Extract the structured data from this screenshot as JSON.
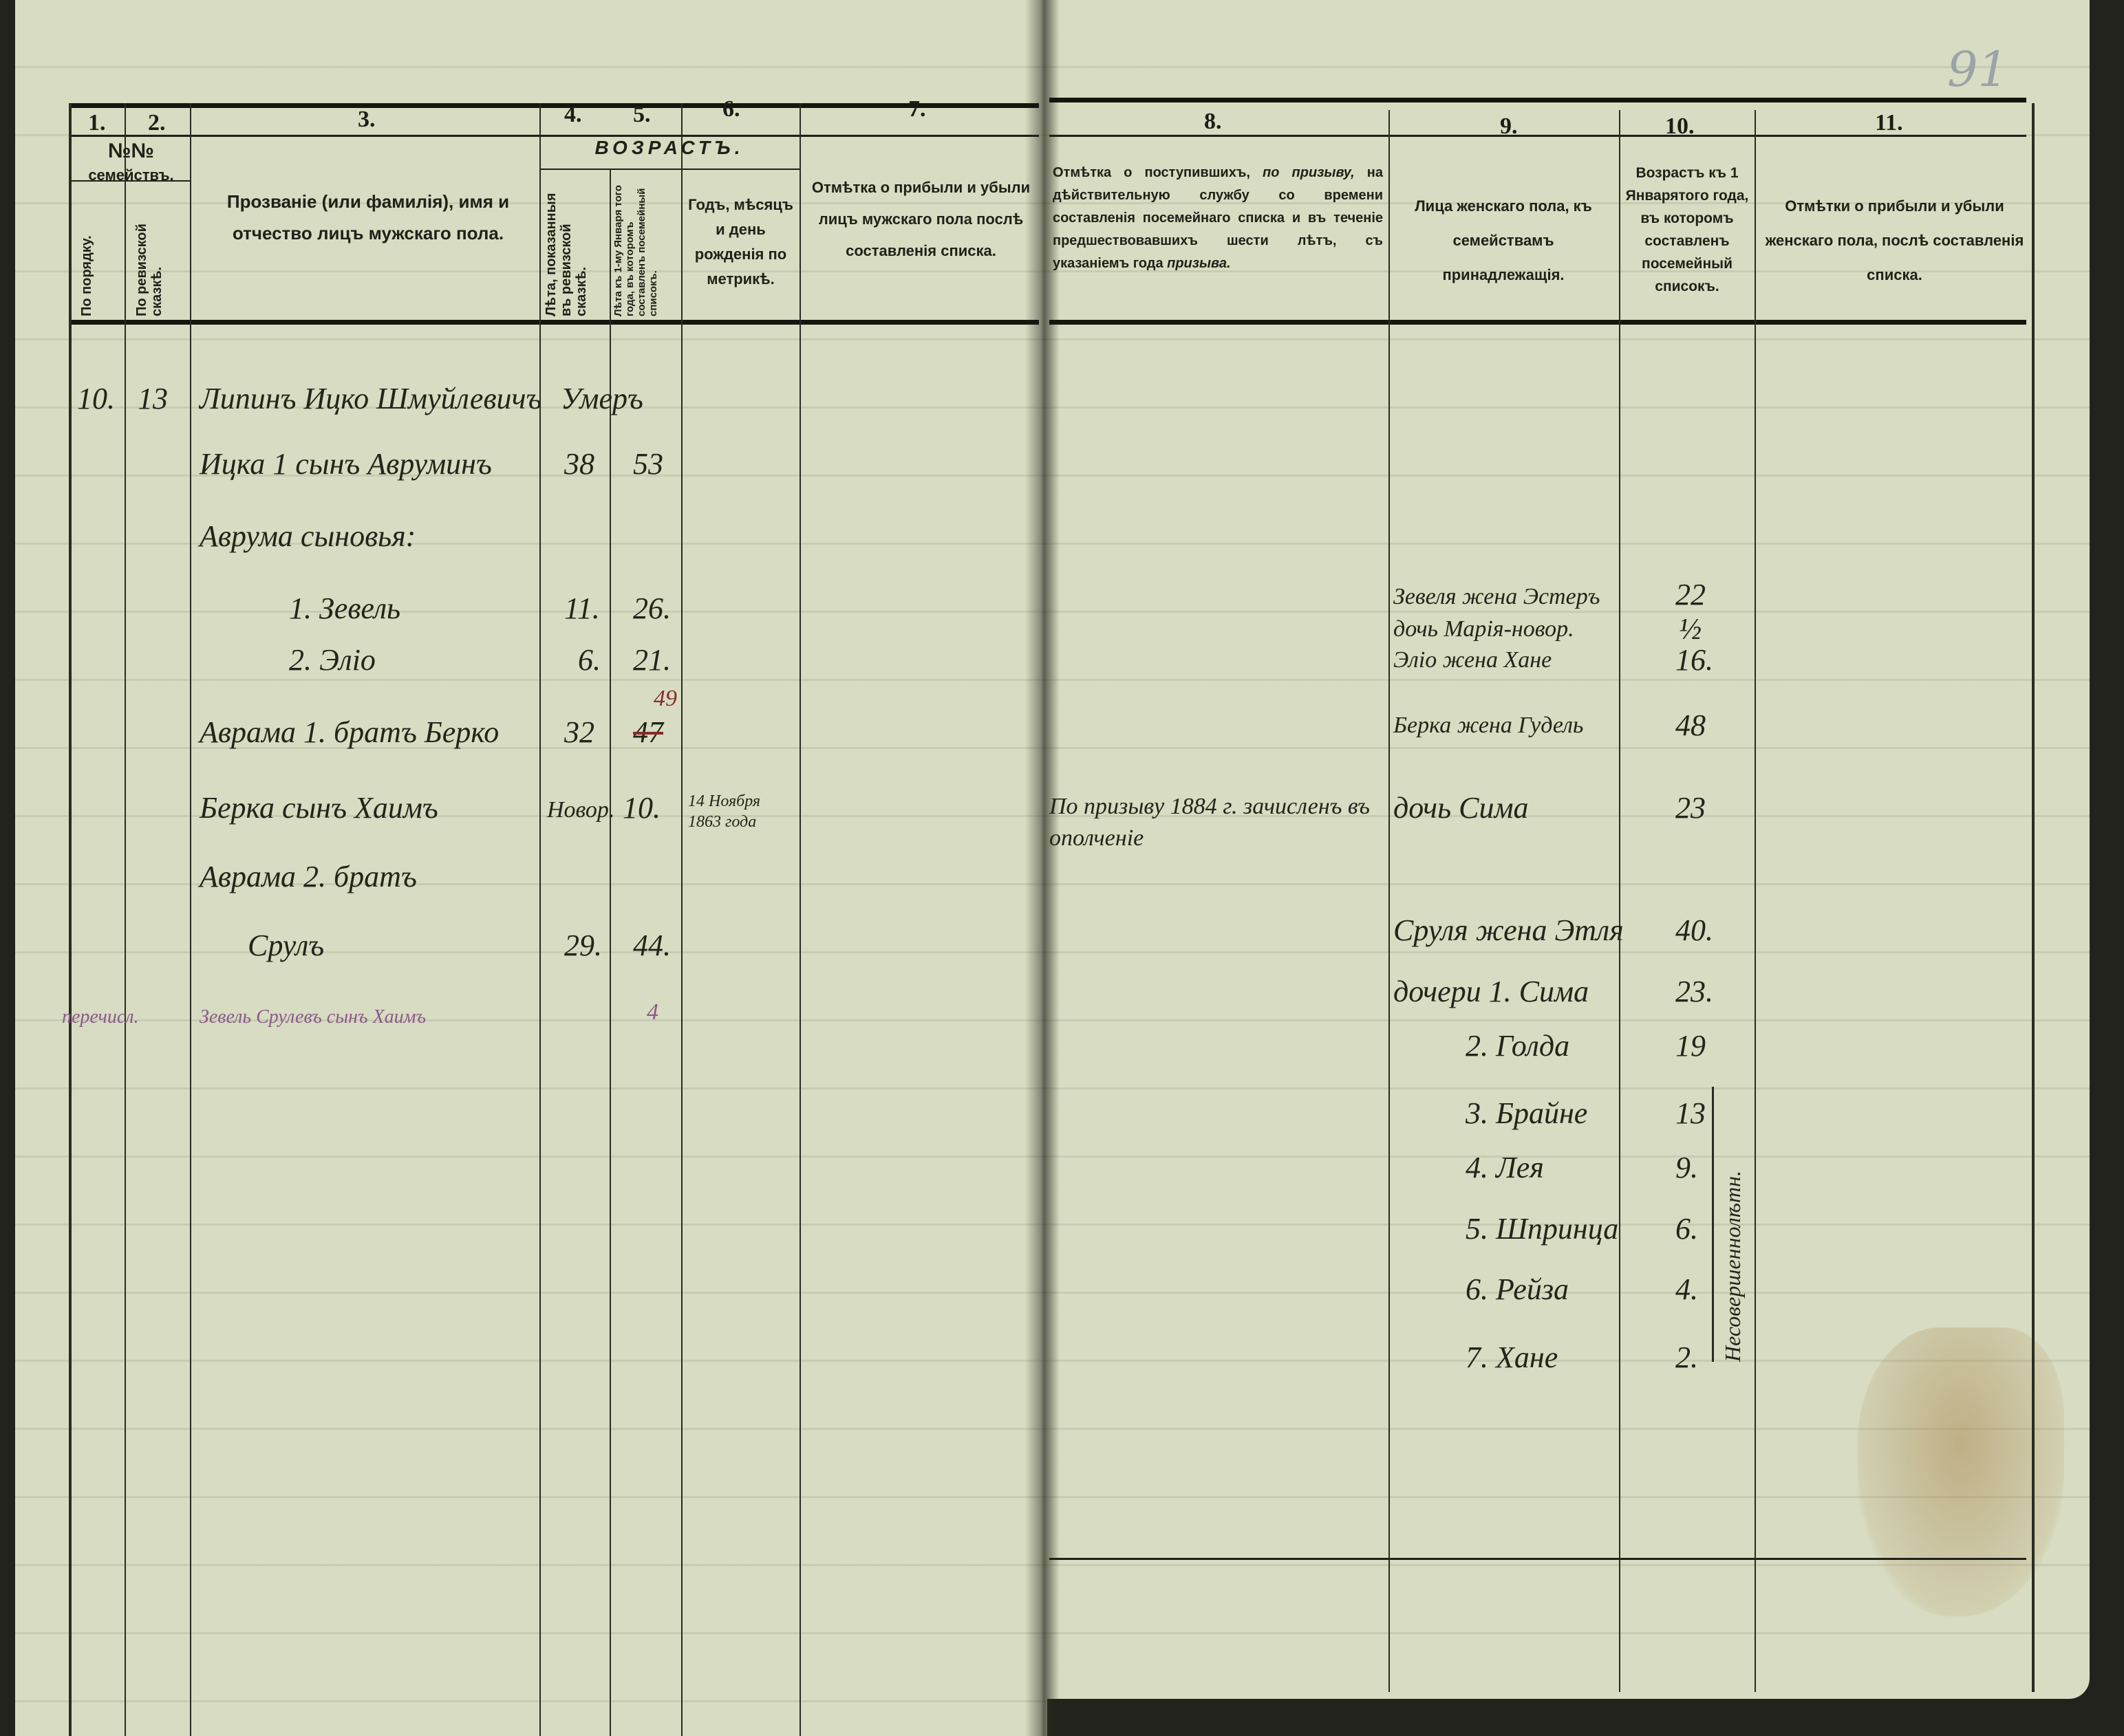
{
  "page_number": "91",
  "header": {
    "column_numbers": [
      "1.",
      "2.",
      "3.",
      "4.",
      "5.",
      "6.",
      "7.",
      "8.",
      "9.",
      "10.",
      "11."
    ],
    "families_no": "№№",
    "families_label": "семействъ.",
    "col1": "По порядку.",
    "col2": "По ревизской сказкѣ.",
    "col3": "Прозваніе (или фамилія), имя и отчество лицъ мужскаго пола.",
    "age_group": "ВОЗРАСТЪ.",
    "col4": "Лѣта, показанныя въ ревизской сказкѣ.",
    "col5": "Лѣта къ 1-му Января того года, въ которомъ составленъ посемейный списокъ.",
    "col6": "Годъ, мѣсяцъ и день рожденія по метрикѣ.",
    "col7": "Отмѣтка о прибыли и убыли лицъ мужскаго пола послѣ составленія списка.",
    "col8_a": "Отмѣтка о поступившихъ, ",
    "col8_italic": "по призыву,",
    "col8_b": " на дѣйствительную службу со времени составленія посемейнаго списка и въ теченіе предшествовавшихъ шести лѣтъ, съ указаніемъ года ",
    "col8_italic2": "призыва.",
    "col9": "Лица женскаго пола, къ семействамъ принадлежащія.",
    "col10": "Возрастъ къ 1 Январятого года, въ которомъ составленъ посемейный списокъ.",
    "col11": "Отмѣтки о прибыли и убыли женскаго пола, послѣ составленія списка."
  },
  "family": {
    "no_order": "10.",
    "no_revision": "13"
  },
  "male_rows": [
    {
      "name": "Липинъ Ицко Шмуйлевичъ",
      "age_rev": "Умеръ",
      "age_now": "",
      "birth": ""
    },
    {
      "name": "Ицка 1 сынъ Авруминъ",
      "age_rev": "38",
      "age_now": "53",
      "birth": ""
    },
    {
      "name": "Аврума сыновья:",
      "age_rev": "",
      "age_now": "",
      "birth": ""
    },
    {
      "name": "1. Зевель",
      "age_rev": "11.",
      "age_now": "26.",
      "birth": ""
    },
    {
      "name": "2. Эліо",
      "age_rev": "6.",
      "age_now": "21.",
      "birth": ""
    },
    {
      "name": "Аврама 1. братъ Берко",
      "age_rev": "32",
      "age_now": "47",
      "age_now_corrected": "49",
      "birth": ""
    },
    {
      "name": "Берка сынъ Хаимъ",
      "age_rev": "Новор.",
      "age_now": "10.",
      "birth": "14 Ноября 1863 года"
    },
    {
      "name": "Аврама 2. братъ",
      "age_rev": "",
      "age_now": "",
      "birth": ""
    },
    {
      "name": "Срулъ",
      "age_rev": "29.",
      "age_now": "44.",
      "birth": ""
    },
    {
      "name": "Зевель Срулевъ сынъ Хаимъ",
      "age_rev": "",
      "age_now": "4",
      "birth": ""
    }
  ],
  "margin_note": "перечисл.",
  "conscription_note": "По призыву 1884 г. зачисленъ въ ополченіе",
  "female_rows": [
    {
      "name": "Зевеля жена Эстеръ",
      "age": "22"
    },
    {
      "name": "дочь Марія-новор.",
      "age": "½"
    },
    {
      "name": "Эліо жена Хане",
      "age": "16."
    },
    {
      "name": "Берка жена Гудель",
      "age": "48"
    },
    {
      "name": "дочь Сима",
      "age": "23"
    },
    {
      "name": "Сруля жена Этля",
      "age": "40."
    },
    {
      "name": "дочери 1. Сима",
      "age": "23."
    },
    {
      "name": "2. Голда",
      "age": "19"
    },
    {
      "name": "3. Брайне",
      "age": "13"
    },
    {
      "name": "4. Лея",
      "age": "9."
    },
    {
      "name": "5. Шпринца",
      "age": "6."
    },
    {
      "name": "6. Рейза",
      "age": "4."
    },
    {
      "name": "7. Хане",
      "age": "2."
    }
  ],
  "female_bracket_note": "Несовершеннолѣтн."
}
